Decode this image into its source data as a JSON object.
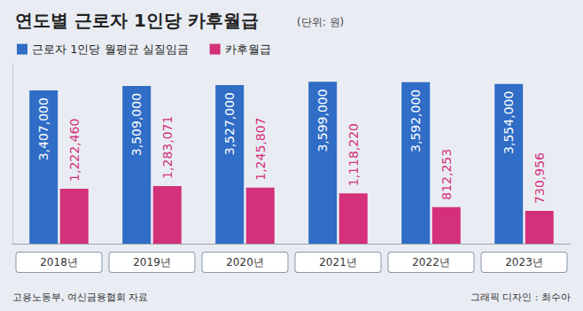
{
  "chart_data": {
    "type": "bar",
    "title": "연도별 근로자 1인당 카후월급",
    "subtitle": "(단위: 원)",
    "categories": [
      "2018년",
      "2019년",
      "2020년",
      "2021년",
      "2022년",
      "2023년"
    ],
    "series": [
      {
        "name": "근로자 1인당 월평균 실질임금",
        "color": "#2f6dc6",
        "values": [
          3407000,
          3509000,
          3527000,
          3599000,
          3592000,
          3554000
        ],
        "value_labels": [
          "3,407,000",
          "3,509,000",
          "3,527,000",
          "3,599,000",
          "3,592,000",
          "3,554,000"
        ]
      },
      {
        "name": "카후월급",
        "color": "#d5307a",
        "values": [
          1222460,
          1283071,
          1245807,
          1118220,
          812253,
          730956
        ],
        "value_labels": [
          "1,222,460",
          "1,283,071",
          "1,245,807",
          "1,118,220",
          "812,253",
          "730,956"
        ]
      }
    ],
    "ylim": [
      0,
      4000000
    ],
    "tick_labels": "x",
    "data_labels": true,
    "grid": false,
    "legend": "top-left",
    "source": "고용노동부, 여신금융협회 자료",
    "credit": "그래픽 디자인 : 최수아"
  }
}
